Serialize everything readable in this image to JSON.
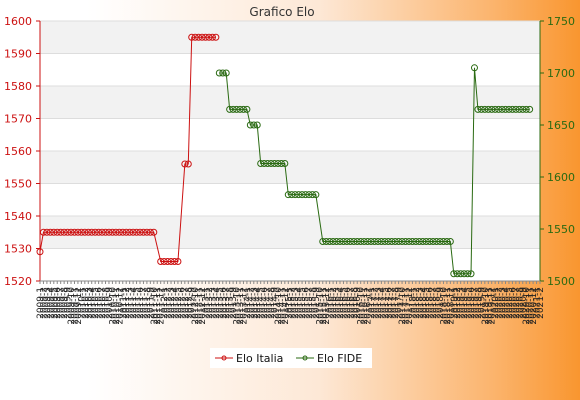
{
  "chart_data": {
    "type": "line",
    "title": "Grafico Elo",
    "grid": true,
    "legend_position": "bottom-center",
    "x_tick_labels": [
      "2009-1",
      "2009-2",
      "2009-3",
      "2009-4",
      "2009-5",
      "2009-6",
      "2009-7",
      "2009-8",
      "2009-9",
      "2009-10",
      "2009-11",
      "2009-12",
      "2010-1",
      "2010-2",
      "2010-3",
      "2010-4",
      "2010-5",
      "2010-6",
      "2010-7",
      "2010-8",
      "2010-9",
      "2010-10",
      "2010-11",
      "2010-12",
      "2011-1",
      "2011-2",
      "2011-3",
      "2011-4",
      "2011-5",
      "2011-6",
      "2011-7",
      "2011-8",
      "2011-9",
      "2011-10",
      "2011-11",
      "2011-12",
      "2012-1",
      "2012-2",
      "2012-3",
      "2012-4",
      "2012-5",
      "2012-6",
      "2012-7",
      "2012-8",
      "2012-9",
      "2012-10",
      "2012-11",
      "2012-12",
      "2013-1",
      "2013-2",
      "2013-3",
      "2013-4",
      "2013-5",
      "2013-6",
      "2013-7",
      "2013-8",
      "2013-9",
      "2013-10",
      "2013-11",
      "2013-12",
      "2014-1",
      "2014-2",
      "2014-3",
      "2014-4",
      "2014-5",
      "2014-6",
      "2014-7",
      "2014-8",
      "2014-9",
      "2014-10",
      "2014-11",
      "2014-12",
      "2015-1",
      "2015-2",
      "2015-3",
      "2015-4",
      "2015-5",
      "2015-6",
      "2015-7",
      "2015-8",
      "2015-9",
      "2015-10",
      "2015-11",
      "2015-12",
      "2016-1",
      "2016-2",
      "2016-3",
      "2016-4",
      "2016-5",
      "2016-6",
      "2016-7",
      "2016-8",
      "2016-9",
      "2016-10",
      "2016-11",
      "2016-12",
      "2017-1",
      "2017-2",
      "2017-3",
      "2017-4",
      "2017-5",
      "2017-6",
      "2017-7",
      "2017-8",
      "2017-9",
      "2017-10",
      "2017-11",
      "2017-12",
      "2018-1",
      "2018-2",
      "2018-3",
      "2018-4",
      "2018-5",
      "2018-6",
      "2018-7",
      "2018-8",
      "2018-9",
      "2018-10",
      "2018-11",
      "2018-12",
      "2019-1",
      "2019-2",
      "2019-3",
      "2019-4",
      "2019-5",
      "2019-6",
      "2019-7",
      "2019-8",
      "2019-9",
      "2019-10",
      "2019-11",
      "2019-12",
      "2020-1",
      "2020-2",
      "2020-3",
      "2020-4",
      "2020-5",
      "2020-6",
      "2020-7",
      "2020-8",
      "2020-9",
      "2020-10",
      "2020-11",
      "2020-12",
      "2021-1",
      "2021-2"
    ],
    "y_left": {
      "min": 1520,
      "max": 1600,
      "ticks": [
        1520,
        1530,
        1540,
        1550,
        1560,
        1570,
        1580,
        1590,
        1600
      ],
      "color": "#cc1111"
    },
    "y_right": {
      "min": 1500,
      "max": 1750,
      "ticks": [
        1500,
        1550,
        1600,
        1650,
        1700,
        1750
      ],
      "color": "#2a6a12"
    },
    "series": [
      {
        "name": "Elo Italia",
        "axis": "left",
        "color": "#cc1111",
        "runs": [
          {
            "start": 0,
            "count": 1,
            "value": 1529
          },
          {
            "start": 1,
            "count": 33,
            "value": 1535
          },
          {
            "start": 35,
            "count": 6,
            "value": 1526
          },
          {
            "start": 42,
            "count": 2,
            "value": 1556
          },
          {
            "start": 44,
            "count": 8,
            "value": 1595
          }
        ]
      },
      {
        "name": "Elo FIDE",
        "axis": "right",
        "color": "#2a6a12",
        "runs": [
          {
            "start": 52,
            "count": 3,
            "value": 1700
          },
          {
            "start": 55,
            "count": 6,
            "value": 1665
          },
          {
            "start": 61,
            "count": 3,
            "value": 1650
          },
          {
            "start": 64,
            "count": 8,
            "value": 1613
          },
          {
            "start": 72,
            "count": 9,
            "value": 1583
          },
          {
            "start": 82,
            "count": 38,
            "value": 1538
          },
          {
            "start": 120,
            "count": 6,
            "value": 1507
          },
          {
            "start": 126,
            "count": 1,
            "value": 1705
          },
          {
            "start": 127,
            "count": 16,
            "value": 1665
          }
        ]
      }
    ]
  }
}
